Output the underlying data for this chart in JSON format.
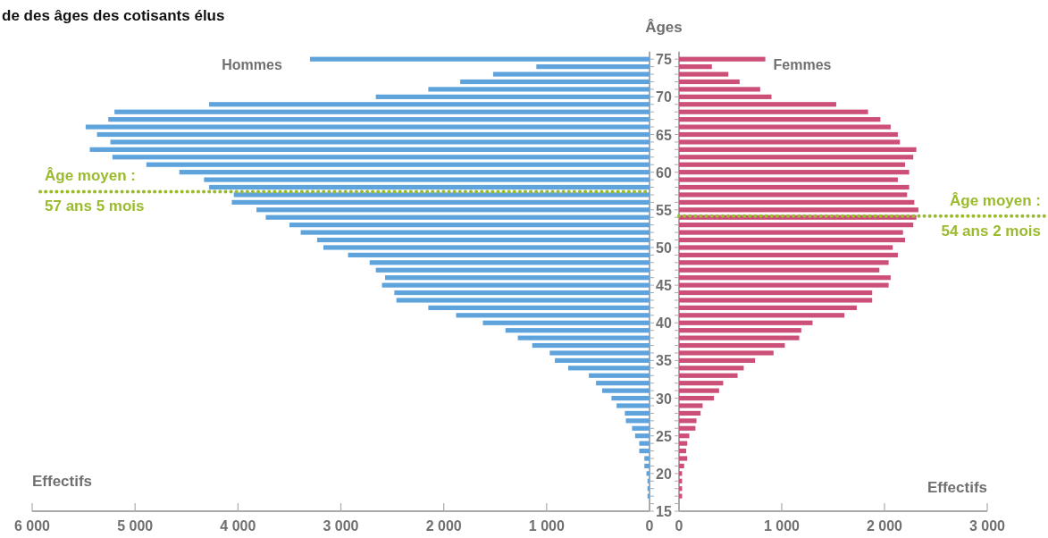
{
  "chart_data": [
    {
      "type": "bar",
      "orientation": "horizontal",
      "title": "de des âges des cotisants élus",
      "xlabel": "Effectifs",
      "ylabel": "Âges",
      "legend": false,
      "x": [
        75,
        74,
        73,
        72,
        71,
        70,
        69,
        68,
        67,
        66,
        65,
        64,
        63,
        62,
        61,
        60,
        59,
        58,
        57,
        56,
        55,
        54,
        53,
        52,
        51,
        50,
        49,
        48,
        47,
        46,
        45,
        44,
        43,
        42,
        41,
        40,
        39,
        38,
        37,
        36,
        35,
        34,
        33,
        32,
        31,
        30,
        29,
        28,
        27,
        26,
        25,
        24,
        23,
        22,
        21,
        20,
        19,
        18,
        17
      ],
      "series": [
        {
          "name": "Hommes",
          "color": "#5fa3dc",
          "values": [
            3300,
            1100,
            1520,
            1840,
            2150,
            2660,
            4280,
            5200,
            5260,
            5480,
            5370,
            5240,
            5440,
            5220,
            4890,
            4570,
            4330,
            4280,
            4040,
            4060,
            3820,
            3730,
            3500,
            3390,
            3230,
            3170,
            2930,
            2720,
            2660,
            2570,
            2600,
            2480,
            2460,
            2150,
            1880,
            1620,
            1400,
            1280,
            1140,
            970,
            920,
            790,
            590,
            520,
            460,
            370,
            320,
            240,
            230,
            170,
            140,
            100,
            100,
            50,
            50,
            30,
            20,
            20,
            20
          ]
        }
      ],
      "xlim": [
        6000,
        0
      ],
      "xticks": [
        {
          "value": 6000,
          "label": "6 000"
        },
        {
          "value": 5000,
          "label": "5 000"
        },
        {
          "value": 4000,
          "label": "4 000"
        },
        {
          "value": 3000,
          "label": "3 000"
        },
        {
          "value": 2000,
          "label": "2 000"
        },
        {
          "value": 1000,
          "label": "1 000"
        },
        0
      ],
      "ylim": [
        15,
        76
      ],
      "yticks": [
        15,
        {
          "value": 16,
          "label": null
        },
        {
          "value": 17,
          "label": null
        },
        {
          "value": 18,
          "label": null
        },
        {
          "value": 19,
          "label": null
        },
        20,
        {
          "value": 21,
          "label": null
        },
        {
          "value": 22,
          "label": null
        },
        {
          "value": 23,
          "label": null
        },
        {
          "value": 24,
          "label": null
        },
        25,
        {
          "value": 26,
          "label": null
        },
        {
          "value": 27,
          "label": null
        },
        {
          "value": 28,
          "label": null
        },
        {
          "value": 29,
          "label": null
        },
        30,
        {
          "value": 31,
          "label": null
        },
        {
          "value": 32,
          "label": null
        },
        {
          "value": 33,
          "label": null
        },
        {
          "value": 34,
          "label": null
        },
        35,
        {
          "value": 36,
          "label": null
        },
        {
          "value": 37,
          "label": null
        },
        {
          "value": 38,
          "label": null
        },
        {
          "value": 39,
          "label": null
        },
        40,
        {
          "value": 41,
          "label": null
        },
        {
          "value": 42,
          "label": null
        },
        {
          "value": 43,
          "label": null
        },
        {
          "value": 44,
          "label": null
        },
        45,
        {
          "value": 46,
          "label": null
        },
        {
          "value": 47,
          "label": null
        },
        {
          "value": 48,
          "label": null
        },
        {
          "value": 49,
          "label": null
        },
        50,
        {
          "value": 51,
          "label": null
        },
        {
          "value": 52,
          "label": null
        },
        {
          "value": 53,
          "label": null
        },
        {
          "value": 54,
          "label": null
        },
        55,
        {
          "value": 56,
          "label": null
        },
        {
          "value": 57,
          "label": null
        },
        {
          "value": 58,
          "label": null
        },
        {
          "value": 59,
          "label": null
        },
        60,
        {
          "value": 61,
          "label": null
        },
        {
          "value": 62,
          "label": null
        },
        {
          "value": 63,
          "label": null
        },
        {
          "value": 64,
          "label": null
        },
        65,
        {
          "value": 66,
          "label": null
        },
        {
          "value": 67,
          "label": null
        },
        {
          "value": 68,
          "label": null
        },
        {
          "value": 69,
          "label": null
        },
        70,
        {
          "value": 71,
          "label": null
        },
        {
          "value": 72,
          "label": null
        },
        {
          "value": 73,
          "label": null
        },
        {
          "value": 74,
          "label": null
        },
        75
      ],
      "ref_lines": [
        {
          "axis": "y",
          "value": 57.42,
          "label": "Âge moyen :\n57 ans 5 mois",
          "color": "#9bbb2e",
          "line_style": "dotted"
        }
      ]
    },
    {
      "type": "bar",
      "orientation": "horizontal",
      "xlabel": "Effectifs",
      "legend": false,
      "tick_labels": "x",
      "x": [
        75,
        74,
        73,
        72,
        71,
        70,
        69,
        68,
        67,
        66,
        65,
        64,
        63,
        62,
        61,
        60,
        59,
        58,
        57,
        56,
        55,
        54,
        53,
        52,
        51,
        50,
        49,
        48,
        47,
        46,
        45,
        44,
        43,
        42,
        41,
        40,
        39,
        38,
        37,
        36,
        35,
        34,
        33,
        32,
        31,
        30,
        29,
        28,
        27,
        26,
        25,
        24,
        23,
        22,
        21,
        20,
        19,
        18,
        17
      ],
      "series": [
        {
          "name": "Femmes",
          "color": "#cc4f78",
          "values": [
            840,
            320,
            480,
            590,
            790,
            900,
            1530,
            1840,
            1960,
            2060,
            2130,
            2150,
            2310,
            2280,
            2200,
            2240,
            2130,
            2240,
            2220,
            2290,
            2330,
            2310,
            2280,
            2180,
            2200,
            2080,
            2130,
            2040,
            1950,
            2060,
            2040,
            1880,
            1880,
            1730,
            1610,
            1300,
            1190,
            1170,
            1030,
            920,
            740,
            630,
            570,
            430,
            390,
            340,
            230,
            210,
            170,
            160,
            100,
            80,
            70,
            80,
            50,
            30,
            30,
            30,
            30
          ]
        }
      ],
      "xlim": [
        0,
        3000
      ],
      "xticks": [
        0,
        {
          "value": 1000,
          "label": "1 000"
        },
        {
          "value": 2000,
          "label": "2 000"
        },
        {
          "value": 3000,
          "label": "3 000"
        }
      ],
      "ylim": [
        15,
        76
      ],
      "yticks": [
        15,
        {
          "value": 16,
          "label": null
        },
        {
          "value": 17,
          "label": null
        },
        {
          "value": 18,
          "label": null
        },
        {
          "value": 19,
          "label": null
        },
        20,
        {
          "value": 21,
          "label": null
        },
        {
          "value": 22,
          "label": null
        },
        {
          "value": 23,
          "label": null
        },
        {
          "value": 24,
          "label": null
        },
        25,
        {
          "value": 26,
          "label": null
        },
        {
          "value": 27,
          "label": null
        },
        {
          "value": 28,
          "label": null
        },
        {
          "value": 29,
          "label": null
        },
        30,
        {
          "value": 31,
          "label": null
        },
        {
          "value": 32,
          "label": null
        },
        {
          "value": 33,
          "label": null
        },
        {
          "value": 34,
          "label": null
        },
        35,
        {
          "value": 36,
          "label": null
        },
        {
          "value": 37,
          "label": null
        },
        {
          "value": 38,
          "label": null
        },
        {
          "value": 39,
          "label": null
        },
        40,
        {
          "value": 41,
          "label": null
        },
        {
          "value": 42,
          "label": null
        },
        {
          "value": 43,
          "label": null
        },
        {
          "value": 44,
          "label": null
        },
        45,
        {
          "value": 46,
          "label": null
        },
        {
          "value": 47,
          "label": null
        },
        {
          "value": 48,
          "label": null
        },
        {
          "value": 49,
          "label": null
        },
        50,
        {
          "value": 51,
          "label": null
        },
        {
          "value": 52,
          "label": null
        },
        {
          "value": 53,
          "label": null
        },
        {
          "value": 54,
          "label": null
        },
        55,
        {
          "value": 56,
          "label": null
        },
        {
          "value": 57,
          "label": null
        },
        {
          "value": 58,
          "label": null
        },
        {
          "value": 59,
          "label": null
        },
        60,
        {
          "value": 61,
          "label": null
        },
        {
          "value": 62,
          "label": null
        },
        {
          "value": 63,
          "label": null
        },
        {
          "value": 64,
          "label": null
        },
        65,
        {
          "value": 66,
          "label": null
        },
        {
          "value": 67,
          "label": null
        },
        {
          "value": 68,
          "label": null
        },
        {
          "value": 69,
          "label": null
        },
        70,
        {
          "value": 71,
          "label": null
        },
        {
          "value": 72,
          "label": null
        },
        {
          "value": 73,
          "label": null
        },
        {
          "value": 74,
          "label": null
        },
        75
      ],
      "ref_lines": [
        {
          "axis": "y",
          "value": 54.17,
          "label": "Âge moyen :\n54 ans 2 mois",
          "color": "#9bbb2e",
          "line_style": "dotted"
        }
      ]
    }
  ]
}
